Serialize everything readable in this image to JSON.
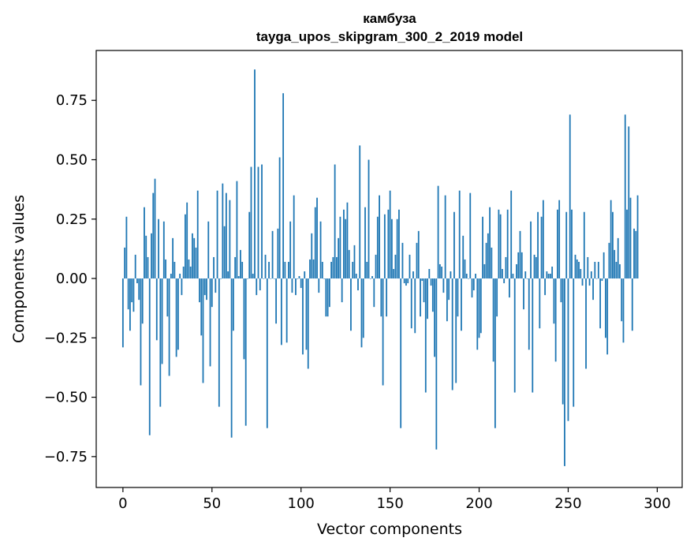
{
  "chart_data": {
    "type": "bar",
    "title": "камбуза",
    "subtitle": "tayga_upos_skipgram_300_2_2019 model",
    "xlabel": "Vector components",
    "ylabel": "Components values",
    "xlim": [
      -15,
      314
    ],
    "ylim": [
      -0.88,
      0.96
    ],
    "xticks": [
      0,
      50,
      100,
      150,
      200,
      250,
      300
    ],
    "xtick_labels": [
      "0",
      "50",
      "100",
      "150",
      "200",
      "250",
      "300"
    ],
    "yticks": [
      -0.75,
      -0.5,
      -0.25,
      0.0,
      0.25,
      0.5,
      0.75
    ],
    "ytick_labels": [
      "−0.75",
      "−0.50",
      "−0.25",
      "0.00",
      "0.25",
      "0.50",
      "0.75"
    ],
    "grid": false,
    "bar_color": "#1f77b4",
    "x_start": 0,
    "values": [
      -0.29,
      0.13,
      0.26,
      -0.13,
      -0.22,
      -0.1,
      -0.14,
      0.1,
      -0.02,
      -0.09,
      -0.45,
      -0.19,
      0.3,
      0.18,
      0.09,
      -0.66,
      0.19,
      0.36,
      0.42,
      -0.26,
      0.25,
      -0.54,
      -0.36,
      0.24,
      0.08,
      -0.16,
      -0.41,
      0.02,
      0.17,
      0.07,
      -0.33,
      -0.3,
      0.02,
      -0.07,
      0.05,
      0.27,
      0.32,
      0.08,
      0.05,
      0.19,
      0.17,
      0.13,
      0.37,
      -0.1,
      -0.24,
      -0.44,
      -0.07,
      -0.09,
      0.24,
      -0.37,
      -0.12,
      0.09,
      -0.06,
      0.37,
      -0.54,
      0.0,
      0.4,
      0.22,
      0.36,
      0.03,
      0.33,
      -0.67,
      -0.22,
      0.09,
      0.41,
      0.01,
      0.12,
      0.07,
      -0.34,
      -0.62,
      0.0,
      0.28,
      0.47,
      0.02,
      0.88,
      -0.07,
      0.47,
      -0.05,
      0.48,
      0.0,
      0.1,
      -0.63,
      0.07,
      0.0,
      0.2,
      0.0,
      -0.19,
      0.21,
      0.51,
      -0.28,
      0.78,
      0.07,
      -0.27,
      0.07,
      0.24,
      -0.06,
      0.35,
      -0.07,
      0.0,
      0.01,
      -0.04,
      -0.32,
      0.03,
      -0.3,
      -0.38,
      0.08,
      0.19,
      0.08,
      0.3,
      0.34,
      -0.06,
      0.24,
      0.07,
      0.0,
      -0.16,
      -0.16,
      -0.12,
      0.07,
      0.09,
      0.48,
      0.09,
      0.17,
      0.26,
      -0.1,
      0.29,
      0.25,
      0.32,
      0.12,
      -0.22,
      0.07,
      0.14,
      0.02,
      -0.05,
      0.56,
      -0.29,
      -0.25,
      0.3,
      0.07,
      0.5,
      0.0,
      0.01,
      -0.12,
      0.1,
      0.26,
      0.35,
      -0.16,
      -0.45,
      0.27,
      -0.16,
      0.29,
      0.37,
      0.25,
      0.04,
      0.1,
      0.25,
      0.29,
      -0.63,
      0.15,
      -0.02,
      -0.03,
      -0.02,
      0.1,
      -0.21,
      0.03,
      -0.23,
      0.15,
      0.2,
      -0.16,
      -0.01,
      -0.1,
      -0.48,
      -0.17,
      0.04,
      -0.03,
      -0.14,
      -0.33,
      -0.72,
      0.39,
      0.06,
      0.05,
      -0.06,
      0.35,
      -0.18,
      -0.09,
      0.03,
      -0.47,
      0.28,
      -0.44,
      -0.16,
      0.37,
      -0.22,
      0.18,
      0.08,
      0.02,
      0.0,
      0.36,
      -0.08,
      -0.05,
      0.02,
      -0.3,
      -0.25,
      -0.23,
      0.26,
      0.06,
      0.15,
      0.19,
      0.3,
      0.13,
      -0.35,
      -0.63,
      -0.16,
      0.29,
      0.27,
      0.04,
      -0.02,
      0.09,
      0.29,
      -0.08,
      0.37,
      0.02,
      -0.48,
      0.06,
      0.11,
      0.2,
      0.11,
      -0.13,
      0.03,
      0.0,
      -0.3,
      0.24,
      -0.48,
      0.1,
      0.09,
      0.28,
      -0.21,
      0.26,
      0.33,
      -0.07,
      0.03,
      0.02,
      0.02,
      0.05,
      -0.19,
      -0.35,
      0.29,
      0.33,
      -0.1,
      -0.53,
      -0.79,
      0.28,
      -0.6,
      0.69,
      0.29,
      -0.54,
      0.1,
      0.08,
      0.07,
      0.04,
      -0.03,
      0.28,
      -0.38,
      0.09,
      -0.03,
      0.03,
      -0.09,
      0.07,
      0.0,
      0.07,
      -0.21,
      -0.01,
      0.11,
      -0.25,
      -0.32,
      0.15,
      0.33,
      0.28,
      0.12,
      0.07,
      0.17,
      0.06,
      -0.18,
      -0.27,
      0.69,
      0.29,
      0.64,
      0.34,
      -0.22,
      0.21,
      0.2,
      0.35
    ]
  }
}
